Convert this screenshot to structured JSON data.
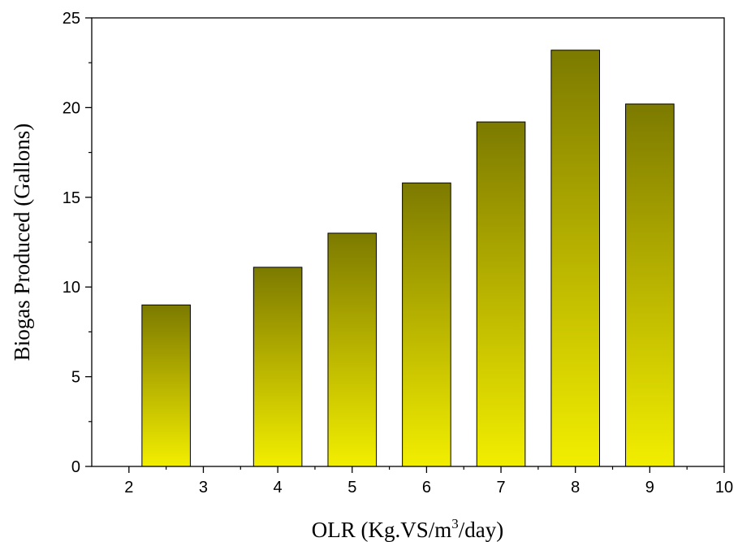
{
  "chart_data": {
    "type": "bar",
    "title": "",
    "xlabel": {
      "main": "OLR (Kg.VS/m",
      "superscript": "3",
      "suffix": "/day)"
    },
    "ylabel": "Biogas Produced (Gallons)",
    "xlim": [
      1.5,
      10
    ],
    "ylim": [
      0,
      25
    ],
    "xticks": [
      "2",
      "3",
      "4",
      "5",
      "6",
      "7",
      "8",
      "9",
      "10"
    ],
    "yticks": [
      "0",
      "5",
      "10",
      "15",
      "20",
      "25"
    ],
    "x": [
      2.5,
      4,
      5,
      6,
      7,
      8,
      9
    ],
    "values": [
      9.0,
      11.1,
      13.0,
      15.8,
      19.2,
      23.2,
      20.2
    ],
    "bar_width": 0.65,
    "grid": false,
    "legend": "none",
    "colors": {
      "bar_top": "#7c7a00",
      "bar_bottom": "#f2ee00",
      "bar_edge": "#000000",
      "axis": "#000000"
    }
  }
}
